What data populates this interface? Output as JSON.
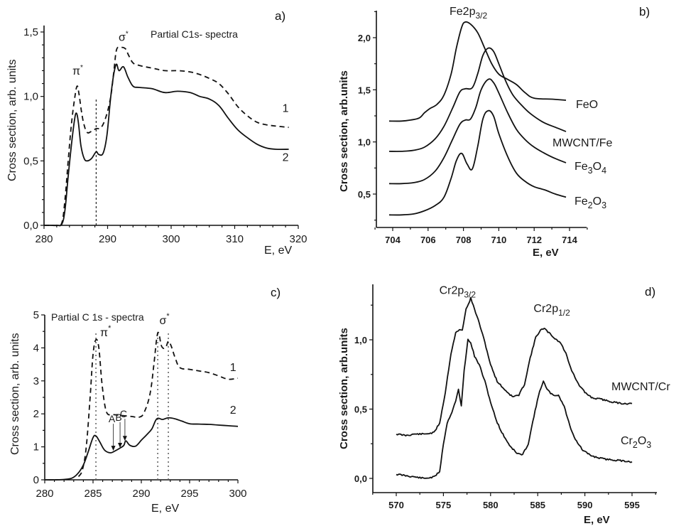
{
  "chart_data": [
    {
      "id": "a",
      "type": "line",
      "panel_label": "a)",
      "title": "Partial C1s- spectra",
      "xlabel": "E, eV",
      "ylabel": "Cross section, arb. units",
      "xlim": [
        280,
        320
      ],
      "ylim": [
        0,
        1.55
      ],
      "xticks": [
        280,
        290,
        300,
        310,
        320
      ],
      "xtick_labels": [
        "280",
        "290",
        "300",
        "310",
        "320"
      ],
      "yticks": [
        0,
        0.5,
        1.0,
        1.5
      ],
      "ytick_labels": [
        "0,0",
        "0,5",
        "1,0",
        "1,5"
      ],
      "annotations": [
        {
          "text": "π*",
          "x": 285.3,
          "y": 1.17
        },
        {
          "text": "σ*",
          "x": 292.5,
          "y": 1.43
        },
        {
          "text": "1",
          "x": 318,
          "y": 0.88
        },
        {
          "text": "2",
          "x": 318,
          "y": 0.5
        }
      ],
      "vline": {
        "x": 288.2,
        "y_top": 0.98,
        "style": "dashed"
      },
      "grid": false,
      "series": [
        {
          "name": "1",
          "style": "dashed",
          "x": [
            280,
            281,
            282,
            282.8,
            283.3,
            283.8,
            284.3,
            284.8,
            285.2,
            285.5,
            285.9,
            286.3,
            286.8,
            287.5,
            288.2,
            289,
            289.8,
            290.5,
            291,
            291.4,
            292,
            292.8,
            293.3,
            294,
            295,
            297,
            299,
            301,
            303,
            304.5,
            306,
            307.5,
            309,
            310.5,
            312,
            313.5,
            315,
            316.5,
            318.5
          ],
          "y": [
            0.0,
            0.0,
            0.0,
            0.02,
            0.2,
            0.5,
            0.78,
            0.98,
            1.08,
            1.02,
            0.88,
            0.78,
            0.72,
            0.73,
            0.75,
            0.76,
            0.85,
            1.0,
            1.2,
            1.36,
            1.38,
            1.37,
            1.32,
            1.26,
            1.24,
            1.22,
            1.2,
            1.2,
            1.19,
            1.17,
            1.14,
            1.1,
            1.02,
            0.92,
            0.85,
            0.8,
            0.78,
            0.77,
            0.76
          ]
        },
        {
          "name": "2",
          "style": "solid",
          "x": [
            280,
            281,
            282,
            282.8,
            283.3,
            283.8,
            284.3,
            284.8,
            285.1,
            285.4,
            285.8,
            286.3,
            286.8,
            287.5,
            288.2,
            288.6,
            289.3,
            289.9,
            290.5,
            291.0,
            291.4,
            291.8,
            292.5,
            293.2,
            294,
            295,
            297,
            299,
            301,
            303,
            304.5,
            306,
            307.5,
            309,
            310.5,
            312,
            313.5,
            315,
            316.5,
            318.5
          ],
          "y": [
            0.0,
            0.0,
            0.0,
            0.01,
            0.12,
            0.38,
            0.62,
            0.82,
            0.87,
            0.8,
            0.62,
            0.52,
            0.5,
            0.52,
            0.57,
            0.55,
            0.56,
            0.7,
            1.0,
            1.18,
            1.25,
            1.2,
            1.23,
            1.15,
            1.08,
            1.07,
            1.06,
            1.03,
            1.04,
            1.03,
            1.0,
            0.98,
            0.93,
            0.83,
            0.74,
            0.68,
            0.63,
            0.6,
            0.59,
            0.59
          ]
        }
      ]
    },
    {
      "id": "b",
      "type": "line",
      "panel_label": "b)",
      "title": "Fe2p3/2",
      "title_main": "Fe2p",
      "title_sub": "3/2",
      "xlabel": "E, eV",
      "ylabel": "Cross section, arb.units",
      "xlim": [
        703,
        715
      ],
      "ylim": [
        0.25,
        2.25
      ],
      "xticks": [
        704,
        706,
        708,
        710,
        712,
        714
      ],
      "xtick_labels": [
        "704",
        "706",
        "708",
        "710",
        "712",
        "714"
      ],
      "yticks": [
        0.5,
        1.0,
        1.5,
        2.0
      ],
      "ytick_labels": [
        "0,5",
        "1,0",
        "1,5",
        "2,0"
      ],
      "grid": false,
      "series": [
        {
          "name": "FeO",
          "label_main": "FeO",
          "label_sub": "",
          "label_tail": "",
          "x": [
            703.8,
            704.5,
            705,
            705.5,
            705.8,
            706.1,
            706.5,
            706.9,
            707.3,
            707.6,
            707.9,
            708.1,
            708.4,
            708.8,
            709.2,
            709.6,
            710,
            710.5,
            711,
            711.5,
            712,
            713,
            713.8
          ],
          "y": [
            1.2,
            1.2,
            1.21,
            1.23,
            1.28,
            1.32,
            1.36,
            1.45,
            1.65,
            1.9,
            2.1,
            2.15,
            2.13,
            2.05,
            1.9,
            1.75,
            1.65,
            1.6,
            1.55,
            1.47,
            1.42,
            1.41,
            1.4
          ]
        },
        {
          "name": "MWCNT/Fe",
          "label_main": "MWCNT/Fe",
          "label_sub": "",
          "label_tail": "",
          "x": [
            703.8,
            704.5,
            705.2,
            705.8,
            706.4,
            706.9,
            707.4,
            707.8,
            708.1,
            708.5,
            708.8,
            709.1,
            709.4,
            709.7,
            710,
            710.4,
            710.8,
            711.3,
            711.8,
            712.5,
            713.2,
            713.8
          ],
          "y": [
            0.91,
            0.91,
            0.92,
            0.95,
            1.03,
            1.15,
            1.33,
            1.48,
            1.51,
            1.52,
            1.65,
            1.83,
            1.9,
            1.87,
            1.75,
            1.58,
            1.45,
            1.35,
            1.27,
            1.19,
            1.14,
            1.1
          ]
        },
        {
          "name": "Fe3O4",
          "label_main": "Fe",
          "label_sub": "3",
          "label_tail": "O",
          "label_sub2": "4",
          "x": [
            703.8,
            704.5,
            705.2,
            705.8,
            706.4,
            706.9,
            707.4,
            707.8,
            708.1,
            708.4,
            708.7,
            709.0,
            709.4,
            709.7,
            710,
            710.5,
            711,
            711.5,
            712,
            712.6,
            713.2,
            713.8
          ],
          "y": [
            0.6,
            0.6,
            0.61,
            0.64,
            0.72,
            0.85,
            1.03,
            1.17,
            1.21,
            1.22,
            1.33,
            1.5,
            1.6,
            1.57,
            1.47,
            1.28,
            1.12,
            1.02,
            0.95,
            0.89,
            0.84,
            0.8
          ]
        },
        {
          "name": "Fe2O3",
          "label_main": "Fe",
          "label_sub": "2",
          "label_tail": "O",
          "label_sub2": "3",
          "x": [
            703.8,
            704.5,
            705.2,
            705.8,
            706.4,
            706.9,
            707.3,
            707.6,
            707.9,
            708.2,
            708.5,
            708.8,
            709.1,
            709.4,
            709.7,
            710,
            710.5,
            711,
            711.5,
            712,
            712.6,
            713.2,
            713.8
          ],
          "y": [
            0.3,
            0.3,
            0.31,
            0.34,
            0.39,
            0.47,
            0.65,
            0.82,
            0.89,
            0.79,
            0.74,
            0.95,
            1.22,
            1.3,
            1.25,
            1.08,
            0.86,
            0.7,
            0.62,
            0.57,
            0.54,
            0.5,
            0.47
          ]
        }
      ]
    },
    {
      "id": "c",
      "type": "line",
      "panel_label": "c)",
      "title": "Partial C 1s - spectra",
      "xlabel": "E, eV",
      "ylabel": "Cross section, arb. units",
      "xlim": [
        280,
        300
      ],
      "ylim": [
        0,
        5
      ],
      "xticks": [
        280,
        285,
        290,
        295,
        300
      ],
      "xtick_labels": [
        "280",
        "285",
        "290",
        "295",
        "300"
      ],
      "yticks": [
        0,
        1,
        2,
        3,
        4,
        5
      ],
      "ytick_labels": [
        "0",
        "1",
        "2",
        "3",
        "4",
        "5"
      ],
      "grid": false,
      "annotations": [
        {
          "text": "π*",
          "x": 286.3,
          "y": 4.35
        },
        {
          "text": "σ*",
          "x": 292.4,
          "y": 4.72
        },
        {
          "text": "1",
          "x": 299.5,
          "y": 3.3
        },
        {
          "text": "2",
          "x": 299.5,
          "y": 2.0
        }
      ],
      "arrows": [
        {
          "label": "A",
          "x": 287.1,
          "y_from": 1.7,
          "y_to": 0.88
        },
        {
          "label": "B",
          "x": 287.8,
          "y_from": 1.75,
          "y_to": 0.97
        },
        {
          "label": "C",
          "x": 288.3,
          "y_from": 1.85,
          "y_to": 1.18
        }
      ],
      "vlines_dotted": [
        285.3,
        291.7,
        292.8
      ],
      "series": [
        {
          "name": "1",
          "style": "dashed",
          "x": [
            283.5,
            283.9,
            284.3,
            284.7,
            285.0,
            285.3,
            285.6,
            285.9,
            286.2,
            286.5,
            287,
            288,
            289,
            289.8,
            290.3,
            290.9,
            291.3,
            291.6,
            291.8,
            292.1,
            292.5,
            292.8,
            293.1,
            293.5,
            294,
            295,
            296,
            297,
            298,
            299,
            300
          ],
          "y": [
            0.1,
            0.3,
            1.0,
            2.5,
            3.8,
            4.25,
            4.0,
            3.0,
            2.3,
            2.0,
            1.98,
            1.95,
            1.92,
            1.9,
            2.05,
            2.6,
            3.5,
            4.3,
            4.45,
            4.05,
            4.0,
            4.2,
            4.05,
            3.7,
            3.4,
            3.35,
            3.3,
            3.25,
            3.15,
            3.05,
            3.08
          ]
        },
        {
          "name": "2",
          "style": "solid",
          "x": [
            280,
            281,
            282,
            282.8,
            283.4,
            284,
            284.5,
            285.0,
            285.3,
            285.7,
            286.2,
            286.8,
            287.3,
            287.9,
            288.2,
            288.4,
            288.8,
            289.4,
            290,
            290.6,
            291.1,
            291.6,
            292.2,
            292.8,
            293.5,
            294.2,
            295,
            296,
            297,
            298,
            299,
            300
          ],
          "y": [
            0.0,
            0.0,
            0.01,
            0.05,
            0.18,
            0.45,
            0.85,
            1.28,
            1.33,
            1.15,
            0.9,
            0.82,
            0.88,
            0.98,
            1.05,
            1.18,
            1.05,
            1.02,
            1.2,
            1.38,
            1.55,
            1.85,
            1.83,
            1.88,
            1.85,
            1.78,
            1.7,
            1.69,
            1.68,
            1.66,
            1.64,
            1.62
          ]
        }
      ]
    },
    {
      "id": "d",
      "type": "line",
      "panel_label": "d)",
      "xlabel": "E, eV",
      "ylabel": "Cross section, arb.units",
      "xlim": [
        567.5,
        597.5
      ],
      "ylim": [
        -0.1,
        1.35
      ],
      "xticks": [
        570,
        575,
        580,
        585,
        590,
        595
      ],
      "xtick_labels": [
        "570",
        "575",
        "580",
        "585",
        "590",
        "595"
      ],
      "yticks": [
        0.0,
        0.5,
        1.0
      ],
      "ytick_labels": [
        "0,0",
        "0,5",
        "1,0"
      ],
      "grid": false,
      "annotations": [
        {
          "text_main": "Cr2p",
          "text_sub": "3/2",
          "x": 576.5,
          "y": 1.33
        },
        {
          "text_main": "Cr2p",
          "text_sub": "1/2",
          "x": 586.5,
          "y": 1.2
        }
      ],
      "series": [
        {
          "name": "MWCNT/Cr",
          "label_main": "MWCNT/Cr",
          "label_sub": "",
          "label_tail": "",
          "x": [
            570,
            571,
            572,
            573,
            574,
            574.6,
            575.2,
            575.8,
            576.3,
            576.7,
            577.0,
            577.4,
            577.9,
            578.3,
            578.8,
            579.4,
            580,
            580.7,
            581.5,
            582.3,
            583.0,
            583.6,
            584.2,
            584.8,
            585.3,
            585.7,
            586.2,
            586.8,
            587.4,
            588,
            588.6,
            589.3,
            590,
            590.8,
            591.8,
            593,
            594,
            595
          ],
          "y": [
            0.32,
            0.31,
            0.32,
            0.32,
            0.33,
            0.4,
            0.62,
            0.9,
            1.05,
            1.07,
            1.07,
            1.22,
            1.3,
            1.22,
            1.12,
            0.98,
            0.82,
            0.7,
            0.64,
            0.59,
            0.6,
            0.68,
            0.87,
            1.02,
            1.07,
            1.08,
            1.05,
            1.01,
            0.98,
            0.9,
            0.78,
            0.68,
            0.62,
            0.58,
            0.57,
            0.55,
            0.54,
            0.54
          ]
        },
        {
          "name": "Cr2O3",
          "label_main": "Cr",
          "label_sub": "2",
          "label_tail": "O",
          "label_sub2": "3",
          "x": [
            570,
            571,
            572,
            573,
            574,
            574.6,
            575.0,
            575.4,
            575.9,
            576.3,
            576.6,
            576.9,
            577.2,
            577.6,
            577.9,
            578.3,
            578.8,
            579.4,
            580,
            580.6,
            581.2,
            582,
            582.8,
            583.4,
            584,
            584.6,
            585.2,
            585.6,
            586,
            586.6,
            587.2,
            587.8,
            588.4,
            589,
            589.8,
            590.8,
            592,
            593.5,
            595
          ],
          "y": [
            0.03,
            0.02,
            0.01,
            0.0,
            0.01,
            0.05,
            0.25,
            0.4,
            0.48,
            0.56,
            0.64,
            0.52,
            0.78,
            1.0,
            0.98,
            0.88,
            0.82,
            0.7,
            0.55,
            0.42,
            0.33,
            0.24,
            0.18,
            0.17,
            0.25,
            0.45,
            0.63,
            0.7,
            0.64,
            0.6,
            0.6,
            0.52,
            0.38,
            0.28,
            0.2,
            0.16,
            0.14,
            0.13,
            0.12
          ]
        }
      ]
    }
  ]
}
